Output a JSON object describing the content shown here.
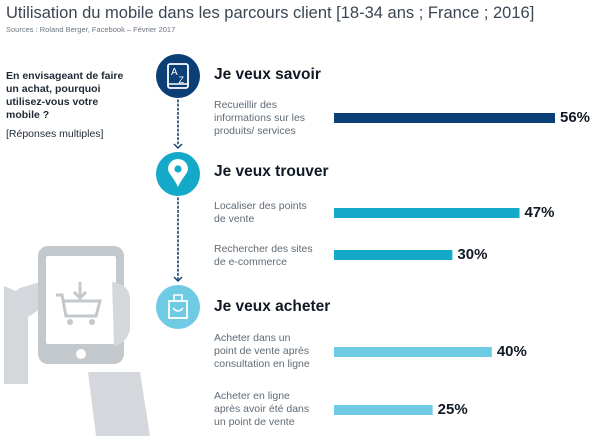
{
  "header": {
    "title": "Utilisation du mobile dans les parcours client [18-34 ans ; France ; 2016]",
    "source": "Sources : Roland Berger, Facebook – Février 2017"
  },
  "question": {
    "text": "En envisageant de faire un achat, pourquoi utilisez-vous votre mobile ?",
    "note": "[Réponses multiples]"
  },
  "colors": {
    "navy": "#0b3f75",
    "cyan": "#14a9c9",
    "light_blue": "#6fcae3",
    "dotted_line": "#0b3f75",
    "icon_gray": "#c9cdd2"
  },
  "stages": [
    {
      "title": "Je veux savoir",
      "icon": "dictionary-az-icon"
    },
    {
      "title": "Je veux trouver",
      "icon": "location-pin-icon"
    },
    {
      "title": "Je veux acheter",
      "icon": "shopping-bag-icon"
    }
  ],
  "chart_data": {
    "type": "bar",
    "orientation": "horizontal",
    "title": "Utilisation du mobile dans les parcours client [18-34 ans ; France ; 2016]",
    "xlim": [
      0,
      56
    ],
    "unit": "%",
    "items": [
      {
        "stage": 0,
        "label_lines": [
          "Recueillir des",
          "informations  sur les",
          "produits/ services"
        ],
        "value": 56,
        "value_label": "56%",
        "color": "#0b3f75"
      },
      {
        "stage": 1,
        "label_lines": [
          "Localiser des points",
          "de vente"
        ],
        "value": 47,
        "value_label": "47%",
        "color": "#14a9c9"
      },
      {
        "stage": 1,
        "label_lines": [
          "Rechercher des sites",
          "de e-commerce"
        ],
        "value": 30,
        "value_label": "30%",
        "color": "#14a9c9"
      },
      {
        "stage": 2,
        "label_lines": [
          "Acheter dans un",
          "point de vente après",
          "consultation en ligne"
        ],
        "value": 40,
        "value_label": "40%",
        "color": "#6fcae3"
      },
      {
        "stage": 2,
        "label_lines": [
          "Acheter en ligne",
          "après avoir été dans",
          "un point  de vente"
        ],
        "value": 25,
        "value_label": "25%",
        "color": "#6fcae3"
      }
    ]
  }
}
